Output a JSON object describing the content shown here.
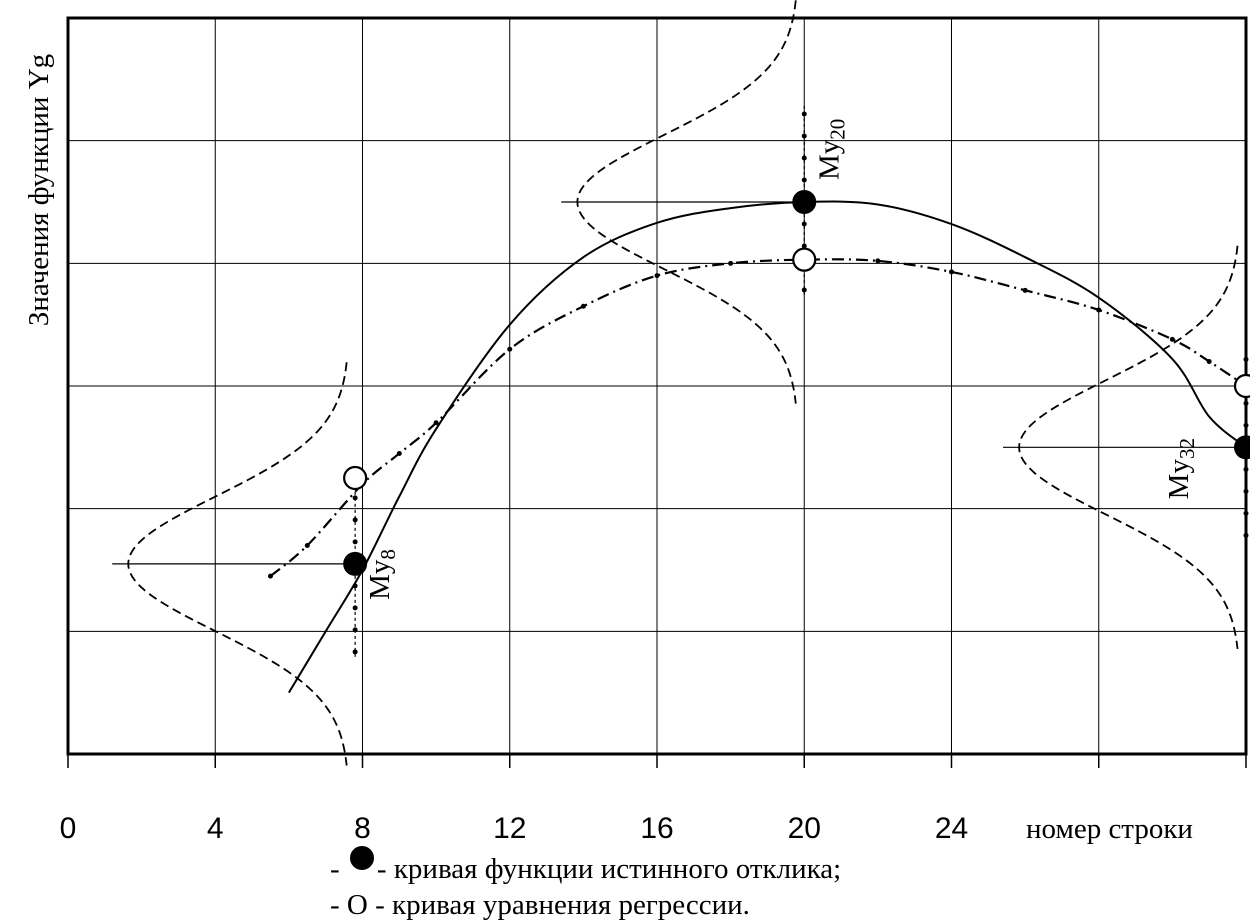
{
  "chart_data": {
    "type": "line",
    "ylabel": "Значения функции Yg",
    "xlabel": "номер строки",
    "x_ticks": [
      "0",
      "4",
      "8",
      "12",
      "16",
      "20",
      "24"
    ],
    "xlim": [
      0,
      32
    ],
    "ylim": [
      0,
      6
    ],
    "grid": true,
    "series": [
      {
        "style": "solid",
        "x": [
          6,
          7,
          8,
          9,
          10,
          12,
          14,
          16,
          18,
          20,
          22,
          24,
          26,
          28,
          30,
          31,
          32
        ],
        "y": [
          0.5,
          1.0,
          1.5,
          2.1,
          2.65,
          3.5,
          4.05,
          4.33,
          4.45,
          4.5,
          4.48,
          4.32,
          4.05,
          3.72,
          3.22,
          2.75,
          2.5
        ]
      },
      {
        "style": "dash-dot",
        "x": [
          5.5,
          6.5,
          8,
          9,
          10,
          12,
          14,
          16,
          18,
          20,
          22,
          24,
          26,
          28,
          30,
          31,
          32
        ],
        "y": [
          1.45,
          1.7,
          2.2,
          2.45,
          2.7,
          3.3,
          3.65,
          3.9,
          4.0,
          4.03,
          4.02,
          3.93,
          3.78,
          3.62,
          3.38,
          3.2,
          3.0
        ]
      }
    ],
    "markers": [
      {
        "label": "My",
        "sub": "8",
        "x": 7.8,
        "true_y": 1.55,
        "reg_y": 2.25
      },
      {
        "label": "My",
        "sub": "20",
        "x": 20,
        "true_y": 4.5,
        "reg_y": 4.03
      },
      {
        "label": "My",
        "sub": "32",
        "x": 32,
        "true_y": 2.5,
        "reg_y": 3.0
      }
    ],
    "legend": [
      {
        "symbol": "filled-circle",
        "prefix": "- ",
        "text": " - кривая функции истинного отклика;"
      },
      {
        "symbol": "letter-O",
        "prefix": "- О - ",
        "text": "кривая уравнения регрессии."
      }
    ]
  }
}
